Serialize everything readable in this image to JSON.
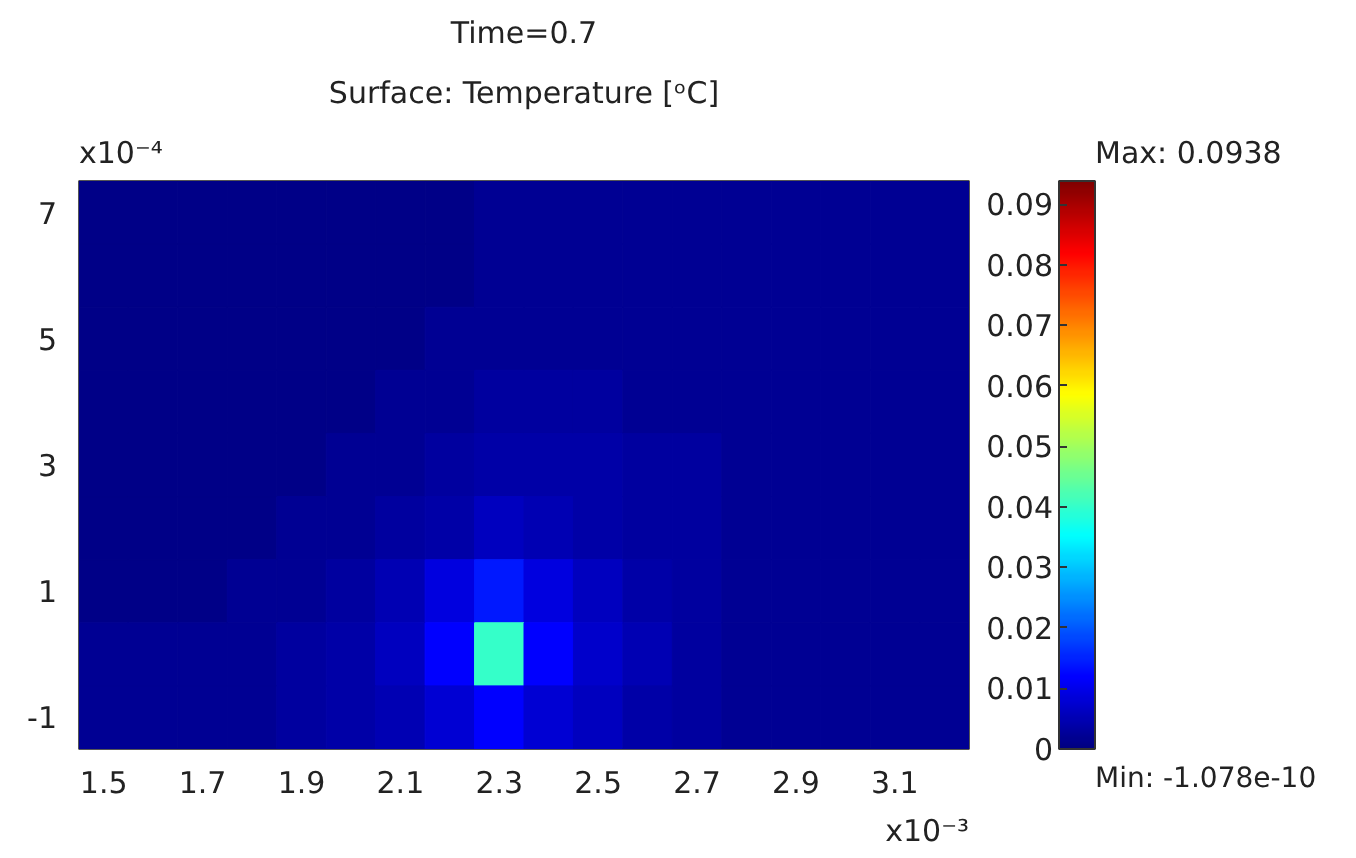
{
  "chart_data": {
    "type": "heatmap",
    "title": "Time=0.7",
    "subtitle": "Surface: Temperature [ᵒC]",
    "categories": [
      "1.5",
      null,
      "1.7",
      null,
      "1.9",
      null,
      "2.1",
      null,
      "2.3",
      null,
      "2.5",
      null,
      "2.7",
      null,
      "2.9",
      null,
      "3.1",
      null
    ],
    "y_categories": [
      "7",
      null,
      "5",
      null,
      "3",
      null,
      "1",
      null,
      "-1"
    ],
    "cells": [
      [
        0.001,
        0.001,
        0.001,
        0.001,
        0.001,
        0.001,
        0.001,
        0.001,
        0.002,
        0.002,
        0.002,
        0.002,
        0.002,
        0.002,
        0.002,
        0.002,
        0.002,
        0.002
      ],
      [
        0.001,
        0.001,
        0.001,
        0.001,
        0.001,
        0.001,
        0.001,
        0.001,
        0.002,
        0.002,
        0.002,
        0.002,
        0.002,
        0.002,
        0.002,
        0.002,
        0.002,
        0.002
      ],
      [
        0.001,
        0.001,
        0.001,
        0.001,
        0.001,
        0.001,
        0.001,
        0.002,
        0.002,
        0.002,
        0.002,
        0.002,
        0.002,
        0.002,
        0.002,
        0.002,
        0.002,
        0.002
      ],
      [
        0.001,
        0.001,
        0.001,
        0.001,
        0.001,
        0.001,
        0.002,
        0.002,
        0.003,
        0.003,
        0.003,
        0.002,
        0.002,
        0.002,
        0.002,
        0.002,
        0.002,
        0.002
      ],
      [
        0.001,
        0.001,
        0.001,
        0.001,
        0.001,
        0.002,
        0.002,
        0.003,
        0.004,
        0.004,
        0.004,
        0.003,
        0.003,
        0.002,
        0.002,
        0.002,
        0.002,
        0.002
      ],
      [
        0.001,
        0.001,
        0.001,
        0.001,
        0.002,
        0.002,
        0.003,
        0.004,
        0.006,
        0.005,
        0.004,
        0.003,
        0.003,
        0.002,
        0.002,
        0.002,
        0.002,
        0.002
      ],
      [
        0.001,
        0.001,
        0.001,
        0.002,
        0.002,
        0.003,
        0.005,
        0.009,
        0.014,
        0.009,
        0.006,
        0.004,
        0.003,
        0.002,
        0.002,
        0.002,
        0.002,
        0.002
      ],
      [
        0.002,
        0.002,
        0.002,
        0.002,
        0.003,
        0.004,
        0.006,
        0.012,
        0.04,
        0.012,
        0.007,
        0.005,
        0.003,
        0.002,
        0.002,
        0.002,
        0.002,
        0.002
      ],
      [
        0.002,
        0.002,
        0.002,
        0.002,
        0.003,
        0.004,
        0.005,
        0.008,
        0.012,
        0.008,
        0.006,
        0.004,
        0.003,
        0.002,
        0.002,
        0.002,
        0.002,
        0.002
      ]
    ],
    "clim": [
      0,
      0.0938
    ],
    "cticks": [
      0,
      0.01,
      0.02,
      0.03,
      0.04,
      0.05,
      0.06,
      0.07,
      0.08,
      0.09
    ],
    "annotations": [
      "x10⁻⁴",
      "x10⁻³",
      "Max: 0.0938",
      "Min: -1.078e-10"
    ]
  }
}
